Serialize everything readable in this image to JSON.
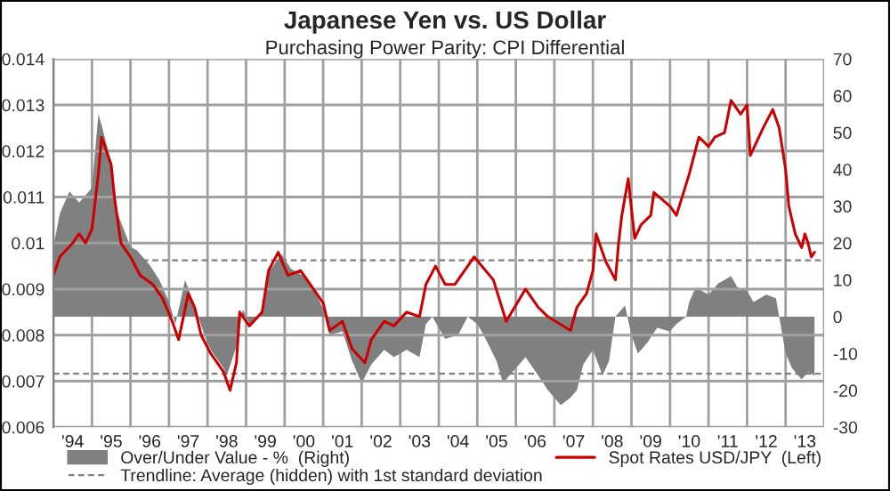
{
  "chart_data": {
    "type": "line",
    "title": "Japanese Yen vs. US Dollar",
    "subtitle": "Purchasing Power Parity: CPI Differential",
    "xlim": [
      "1994",
      "2014"
    ],
    "xticks": [
      {
        "value": "1994",
        "label": null
      },
      {
        "value": "1995",
        "label": null
      },
      {
        "value": "1996",
        "label": null
      },
      {
        "value": "1997",
        "label": null
      },
      {
        "value": "1998",
        "label": null
      },
      {
        "value": "1999",
        "label": null
      },
      {
        "value": "2000",
        "label": null
      },
      {
        "value": "2001",
        "label": null
      },
      {
        "value": "2002",
        "label": null
      },
      {
        "value": "2003",
        "label": null
      },
      {
        "value": "2004",
        "label": null
      },
      {
        "value": "2005",
        "label": null
      },
      {
        "value": "2006",
        "label": null
      },
      {
        "value": "2007",
        "label": null
      },
      {
        "value": "2008",
        "label": null
      },
      {
        "value": "2009",
        "label": null
      },
      {
        "value": "2010",
        "label": null
      },
      {
        "value": "2011",
        "label": null
      },
      {
        "value": "2012",
        "label": null
      },
      {
        "value": "2013",
        "label": null
      },
      {
        "value": "2014",
        "label": null
      },
      {
        "value": "1994-07",
        "label": "'94"
      },
      {
        "value": "1995-07",
        "label": "'95"
      },
      {
        "value": "1996-07",
        "label": "'96"
      },
      {
        "value": "1997-07",
        "label": "'97"
      },
      {
        "value": "1998-07",
        "label": "'98"
      },
      {
        "value": "1999-07",
        "label": "'99"
      },
      {
        "value": "2000-07",
        "label": "'00"
      },
      {
        "value": "2001-07",
        "label": "'01"
      },
      {
        "value": "2002-07",
        "label": "'02"
      },
      {
        "value": "2003-07",
        "label": "'03"
      },
      {
        "value": "2004-07",
        "label": "'04"
      },
      {
        "value": "2005-07",
        "label": "'05"
      },
      {
        "value": "2006-07",
        "label": "'06"
      },
      {
        "value": "2007-07",
        "label": "'07"
      },
      {
        "value": "2008-07",
        "label": "'08"
      },
      {
        "value": "2009-07",
        "label": "'09"
      },
      {
        "value": "2010-07",
        "label": "'10"
      },
      {
        "value": "2011-07",
        "label": "'11"
      },
      {
        "value": "2012-07",
        "label": "'12"
      },
      {
        "value": "2013-07",
        "label": "'13"
      }
    ],
    "ylim": [
      0.006,
      0.014
    ],
    "yticks": [
      0.006,
      0.007,
      0.008,
      0.009,
      0.01,
      0.011,
      0.012,
      0.013,
      0.014
    ],
    "y2lim": [
      -30,
      70
    ],
    "y2ticks": [
      -30,
      -20,
      -10,
      0,
      10,
      20,
      30,
      40,
      50,
      60,
      70
    ],
    "grid": true,
    "legend": "bottom",
    "ref_lines": [
      {
        "axis": "y2",
        "value": 15.3,
        "label": "Trendline: Average (hidden) with 1st standard deviation",
        "color": "#808080",
        "line_style": "dashed"
      },
      {
        "axis": "y2",
        "value": -15.5,
        "label": null,
        "color": "#808080",
        "line_style": "dashed"
      }
    ],
    "series": [
      {
        "name": "Over/Under Value - %  (Right)",
        "type": "area",
        "axis": "y2",
        "color": "#808080",
        "x": [
          "1994-01",
          "1994-03",
          "1994-06",
          "1994-09",
          "1995-01",
          "1995-03",
          "1995-04",
          "1995-07",
          "1995-09",
          "1996-01",
          "1996-03",
          "1996-07",
          "1996-10",
          "1997-01",
          "1997-03",
          "1997-06",
          "1997-09",
          "1997-12",
          "1998-02",
          "1998-06",
          "1998-07",
          "1998-10",
          "1998-12",
          "1999-02",
          "1999-06",
          "1999-08",
          "1999-12",
          "2000-03",
          "2000-07",
          "2000-10",
          "2001-01",
          "2001-03",
          "2001-07",
          "2001-10",
          "2002-01",
          "2002-04",
          "2002-08",
          "2002-11",
          "2003-03",
          "2003-07",
          "2003-09",
          "2003-11",
          "2004-03",
          "2004-07",
          "2004-10",
          "2005-01",
          "2005-03",
          "2005-07",
          "2005-09",
          "2006-01",
          "2006-04",
          "2006-08",
          "2006-11",
          "2007-03",
          "2007-06",
          "2007-08",
          "2007-10",
          "2008-01",
          "2008-04",
          "2008-06",
          "2008-07",
          "2008-08",
          "2008-11",
          "2009-01",
          "2009-03",
          "2009-06",
          "2009-09",
          "2010-01",
          "2010-03",
          "2010-06",
          "2010-07",
          "2010-09",
          "2011-01",
          "2011-04",
          "2011-08",
          "2011-10",
          "2012-01",
          "2012-03",
          "2012-07",
          "2012-10",
          "2012-11",
          "2013-01",
          "2013-03",
          "2013-06",
          "2013-08",
          "2013-10"
        ],
        "values": [
          19,
          28,
          34,
          31,
          35,
          55,
          52,
          42,
          28,
          19,
          18,
          14,
          10,
          4,
          -2,
          10,
          3,
          -5,
          -9,
          -14,
          -16,
          -8,
          2,
          -2,
          1,
          12,
          17,
          13,
          11,
          8,
          2,
          -5,
          -4,
          -12,
          -18,
          -13,
          -9,
          -11,
          -9,
          -11,
          -2,
          0,
          -6,
          -5,
          0,
          -2,
          -5,
          -12,
          -18,
          -14,
          -11,
          -16,
          -20,
          -24,
          -22,
          -20,
          -13,
          -9,
          -16,
          -12,
          -6,
          0,
          3,
          -5,
          -10,
          -7,
          -3,
          -4,
          -2,
          0,
          4,
          8,
          6,
          9,
          11,
          8,
          7,
          4,
          6,
          5,
          0,
          -10,
          -14,
          -17,
          -15,
          -16
        ]
      },
      {
        "name": "Spot Rates USD/JPY  (Left)",
        "axis": "y",
        "color": "#cc0000",
        "x": [
          "1994-01",
          "1994-03",
          "1994-07",
          "1994-09",
          "1994-11",
          "1995-01",
          "1995-03",
          "1995-04",
          "1995-07",
          "1995-08",
          "1995-10",
          "1996-01",
          "1996-04",
          "1996-08",
          "1996-11",
          "1997-02",
          "1997-04",
          "1997-07",
          "1997-09",
          "1997-11",
          "1998-02",
          "1998-06",
          "1998-08",
          "1998-10",
          "1998-11",
          "1999-02",
          "1999-06",
          "1999-08",
          "1999-11",
          "2000-02",
          "2000-06",
          "2000-09",
          "2001-01",
          "2001-03",
          "2001-07",
          "2001-10",
          "2002-02",
          "2002-04",
          "2002-08",
          "2002-11",
          "2003-03",
          "2003-07",
          "2003-09",
          "2003-12",
          "2004-03",
          "2004-06",
          "2004-12",
          "2005-06",
          "2005-10",
          "2006-04",
          "2006-08",
          "2006-11",
          "2007-06",
          "2007-08",
          "2007-11",
          "2008-01",
          "2008-02",
          "2008-05",
          "2008-08",
          "2008-09",
          "2008-10",
          "2008-12",
          "2009-02",
          "2009-04",
          "2009-07",
          "2009-08",
          "2010-01",
          "2010-03",
          "2010-07",
          "2010-10",
          "2011-01",
          "2011-03",
          "2011-06",
          "2011-08",
          "2011-11",
          "2012-01",
          "2012-02",
          "2012-06",
          "2012-09",
          "2012-11",
          "2013-01",
          "2013-02",
          "2013-04",
          "2013-06",
          "2013-07",
          "2013-08",
          "2013-09",
          "2013-10"
        ],
        "values": [
          0.0093,
          0.0097,
          0.01,
          0.0102,
          0.01,
          0.0103,
          0.0115,
          0.0123,
          0.0117,
          0.011,
          0.01,
          0.0097,
          0.0093,
          0.0091,
          0.0088,
          0.0083,
          0.0079,
          0.0089,
          0.0086,
          0.008,
          0.0076,
          0.0072,
          0.0068,
          0.0074,
          0.0085,
          0.0082,
          0.0085,
          0.0094,
          0.0098,
          0.0093,
          0.0094,
          0.0091,
          0.0087,
          0.0081,
          0.0083,
          0.0077,
          0.0074,
          0.0079,
          0.0083,
          0.0082,
          0.0085,
          0.0084,
          0.0091,
          0.0095,
          0.0091,
          0.0091,
          0.0097,
          0.0092,
          0.0083,
          0.009,
          0.0086,
          0.0084,
          0.0081,
          0.0086,
          0.0089,
          0.0094,
          0.0102,
          0.0096,
          0.0092,
          0.01,
          0.0106,
          0.0114,
          0.0101,
          0.0104,
          0.0106,
          0.0111,
          0.0108,
          0.0106,
          0.0115,
          0.0123,
          0.0121,
          0.0123,
          0.0124,
          0.0131,
          0.0128,
          0.013,
          0.0119,
          0.0125,
          0.0129,
          0.0125,
          0.0116,
          0.0108,
          0.0102,
          0.0099,
          0.0102,
          0.01,
          0.0097,
          0.0098
        ]
      }
    ]
  }
}
